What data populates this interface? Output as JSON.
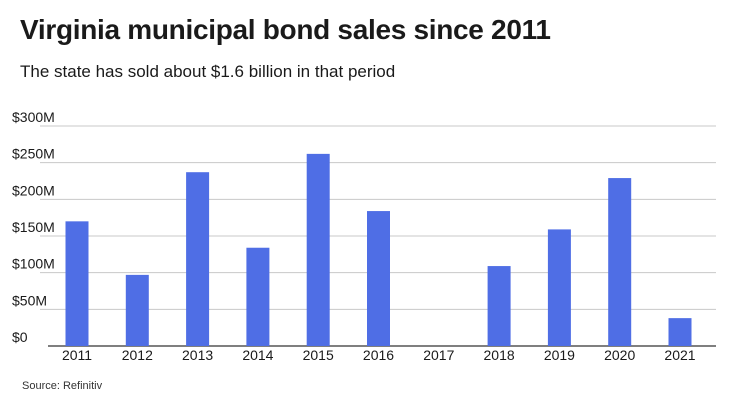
{
  "title": "Virginia municipal bond sales since 2011",
  "subtitle": "The state has sold about $1.6 billion in that period",
  "source": "Source: Refinitiv",
  "colors": {
    "bar": "#4f6ee5",
    "grid": "#c8c8c8",
    "baseline": "#333333",
    "text": "#1a1a1a"
  },
  "chart_data": {
    "type": "bar",
    "title": "Virginia municipal bond sales since 2011",
    "subtitle": "The state has sold about $1.6 billion in that period",
    "categories": [
      "2011",
      "2012",
      "2013",
      "2014",
      "2015",
      "2016",
      "2017",
      "2018",
      "2019",
      "2020",
      "2021"
    ],
    "values": [
      170,
      97,
      237,
      134,
      262,
      184,
      0,
      109,
      159,
      229,
      38
    ],
    "value_unit": "$M",
    "ylim": [
      0,
      300
    ],
    "yticks": [
      0,
      50,
      100,
      150,
      200,
      250,
      300
    ],
    "ytick_labels": [
      "$0",
      "$50M",
      "$100M",
      "$150M",
      "$200M",
      "$250M",
      "$300M"
    ],
    "xlabel": "",
    "ylabel": "",
    "grid": true,
    "legend": "none"
  }
}
